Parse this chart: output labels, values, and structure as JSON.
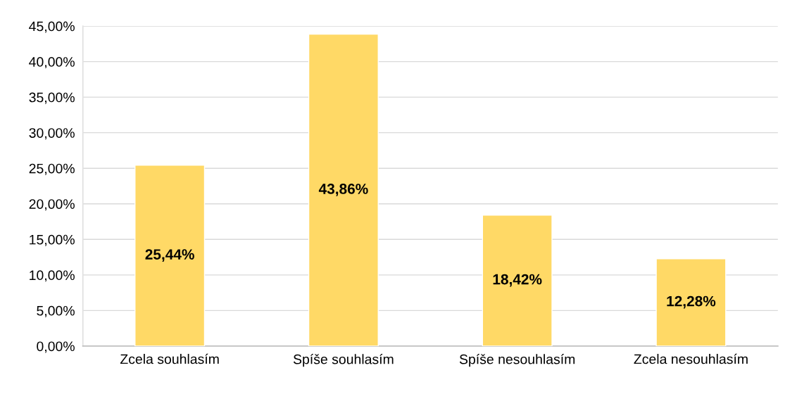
{
  "chart_data": {
    "type": "bar",
    "categories": [
      "Zcela souhlasím",
      "Spíše souhlasím",
      "Spíše nesouhlasím",
      "Zcela nesouhlasím"
    ],
    "values": [
      25.44,
      43.86,
      18.42,
      12.28
    ],
    "value_labels": [
      "25,44%",
      "43,86%",
      "18,42%",
      "12,28%"
    ],
    "color": "#ffd966",
    "ylim": [
      0,
      45
    ],
    "yticks": [
      {
        "value": 0,
        "label": "0,00%"
      },
      {
        "value": 5,
        "label": "5,00%"
      },
      {
        "value": 10,
        "label": "10,00%"
      },
      {
        "value": 15,
        "label": "15,00%"
      },
      {
        "value": 20,
        "label": "20,00%"
      },
      {
        "value": 25,
        "label": "25,00%"
      },
      {
        "value": 30,
        "label": "30,00%"
      },
      {
        "value": 35,
        "label": "35,00%"
      },
      {
        "value": 40,
        "label": "40,00%"
      },
      {
        "value": 45,
        "label": "45,00%"
      }
    ],
    "grid": "y",
    "legend": false
  }
}
